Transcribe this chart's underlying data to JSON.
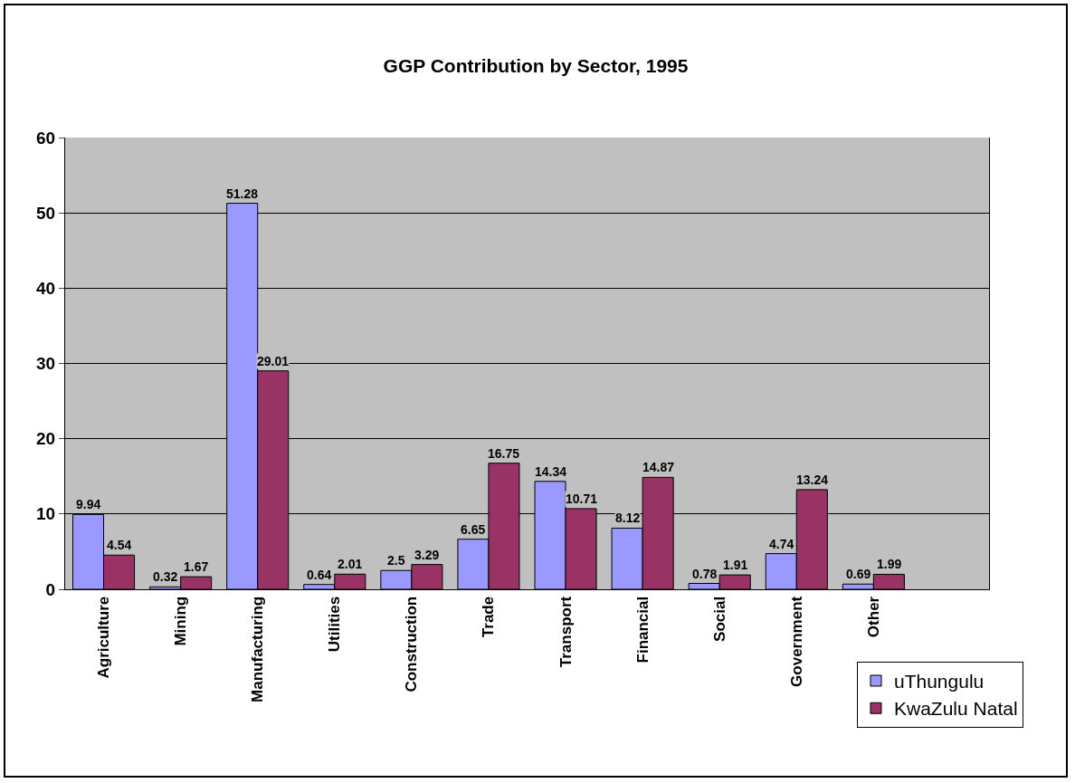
{
  "chart_data": {
    "type": "bar",
    "title": "GGP Contribution by Sector, 1995",
    "categories": [
      "Agriculture",
      "Mining",
      "Manufacturing",
      "Utilities",
      "Construction",
      "Trade",
      "Transport",
      "Financial",
      "Social",
      "Government",
      "Other",
      null
    ],
    "series": [
      {
        "name": "uThungulu",
        "color": "#9999ff",
        "values": [
          9.94,
          0.32,
          51.28,
          0.64,
          2.5,
          6.65,
          14.34,
          8.12,
          0.78,
          4.74,
          0.69,
          null
        ]
      },
      {
        "name": "KwaZulu Natal",
        "color": "#993366",
        "values": [
          4.54,
          1.67,
          29.01,
          2.01,
          3.29,
          16.75,
          10.71,
          14.87,
          1.91,
          13.24,
          1.99,
          null
        ]
      }
    ],
    "ylim": [
      0,
      60
    ],
    "yticks": [
      0,
      10,
      20,
      30,
      40,
      50,
      60
    ],
    "grid": "y",
    "legend": "bottom right",
    "data_labels": true
  }
}
